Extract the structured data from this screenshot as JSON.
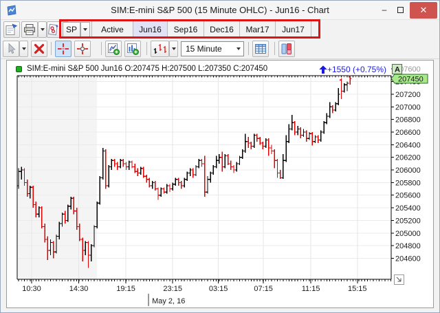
{
  "window": {
    "title": "SIM:E-mini S&P 500 (15 Minute OHLC) - Jun16 - Chart",
    "controls": {
      "minimize": "–",
      "close": "✕"
    }
  },
  "toolbar_main": {
    "icons": [
      "chart-settings-icon",
      "print-icon",
      "chartbook-icon"
    ]
  },
  "symbol_button": {
    "label": "SP"
  },
  "tabs": [
    {
      "label": "Active",
      "selected": false
    },
    {
      "label": "Jun16",
      "selected": true
    },
    {
      "label": "Sep16",
      "selected": false
    },
    {
      "label": "Dec16",
      "selected": false
    },
    {
      "label": "Mar17",
      "selected": false
    },
    {
      "label": "Jun17",
      "selected": false
    }
  ],
  "annotation": {
    "color": "#de1414"
  },
  "toolbar_chart": {
    "icons": [
      "pointer-icon",
      "delete-icon",
      "crosshair-icon",
      "circle-crosshair-icon",
      "open-chart-icon",
      "add-bars-icon",
      "ohlc-style-icon",
      "table-icon",
      "volume-profile-icon"
    ],
    "timeframe": {
      "value": "15 Minute"
    }
  },
  "chart": {
    "legend": "SIM:E-mini S&P 500 Jun16 O:207475 H:207500 L:207350 C:207450",
    "change": {
      "text": "+1550 (+0.75%)",
      "color": "#1b1bdf"
    },
    "last_price": "207450",
    "scale_button": "A",
    "date_label": "May 2, 16"
  },
  "chart_data": {
    "type": "ohlc-bar",
    "title": "SIM:E-mini S&P 500 Jun16, 15 Minute",
    "up_color": "#000000",
    "down_color": "#e00000",
    "grid": true,
    "y_axis": {
      "min": 204450,
      "max": 207600,
      "tick_step": 200,
      "labels": [
        "207600",
        "207400",
        "207200",
        "207000",
        "206800",
        "206600",
        "206400",
        "206200",
        "206000",
        "205800",
        "205600",
        "205400",
        "205200",
        "205000",
        "204800",
        "204600"
      ]
    },
    "x_axis": {
      "labels": [
        {
          "text": "10:30",
          "bar": 4.5
        },
        {
          "text": "14:30",
          "bar": 20.7
        },
        {
          "text": "19:15",
          "bar": 36.9
        },
        {
          "text": "23:15",
          "bar": 53
        },
        {
          "text": "03:15",
          "bar": 68.7
        },
        {
          "text": "07:15",
          "bar": 84.2
        },
        {
          "text": "11:15",
          "bar": 100.5
        },
        {
          "text": "15:15",
          "bar": 116.5
        }
      ],
      "date_marker": {
        "text": "May 2, 16",
        "bar": 44.7
      }
    },
    "session_shade": {
      "from_bar": -0.5,
      "to_bar": 27,
      "color": "#f4f4f4"
    },
    "bars": [
      [
        205750,
        206025,
        205700,
        205975
      ],
      [
        205975,
        206050,
        205850,
        206000
      ],
      [
        206000,
        206025,
        205750,
        205800
      ],
      [
        205800,
        205850,
        205575,
        205625
      ],
      [
        205625,
        205750,
        205550,
        205725
      ],
      [
        205725,
        205750,
        205400,
        205450
      ],
      [
        205450,
        205500,
        205250,
        205300
      ],
      [
        205300,
        205425,
        205250,
        205400
      ],
      [
        205400,
        205425,
        205075,
        205100
      ],
      [
        205100,
        205150,
        204850,
        204900
      ],
      [
        204900,
        204950,
        204575,
        204725
      ],
      [
        204725,
        204900,
        204650,
        204850
      ],
      [
        204850,
        204875,
        204600,
        204700
      ],
      [
        204700,
        204975,
        204675,
        204950
      ],
      [
        204950,
        205175,
        204900,
        205150
      ],
      [
        205150,
        205325,
        205100,
        205300
      ],
      [
        205300,
        205350,
        205150,
        205200
      ],
      [
        205200,
        205450,
        205175,
        205425
      ],
      [
        205425,
        205575,
        205375,
        205550
      ],
      [
        205550,
        205575,
        205300,
        205350
      ],
      [
        205350,
        205400,
        205050,
        205100
      ],
      [
        205100,
        205150,
        204875,
        204900
      ],
      [
        204900,
        204925,
        204550,
        204725
      ],
      [
        204725,
        204875,
        204650,
        204850
      ],
      [
        204850,
        204875,
        204450,
        204650
      ],
      [
        204650,
        204825,
        204550,
        204800
      ],
      [
        204800,
        205125,
        204775,
        205100
      ],
      [
        205100,
        205500,
        205075,
        205475
      ],
      [
        205475,
        205900,
        205450,
        205875
      ],
      [
        205875,
        206350,
        205850,
        206300
      ],
      [
        206300,
        206325,
        205700,
        205750
      ],
      [
        205750,
        206075,
        205725,
        206050
      ],
      [
        206050,
        206175,
        206000,
        206150
      ],
      [
        206150,
        206175,
        206050,
        206100
      ],
      [
        206100,
        206125,
        206000,
        206050
      ],
      [
        206050,
        206175,
        206025,
        206150
      ],
      [
        206150,
        206175,
        206050,
        206100
      ],
      [
        206100,
        206125,
        206000,
        206050
      ],
      [
        206050,
        206150,
        206000,
        206125
      ],
      [
        206125,
        206150,
        206025,
        206050
      ],
      [
        206050,
        206100,
        205950,
        205975
      ],
      [
        205975,
        206025,
        205900,
        205950
      ],
      [
        205950,
        206050,
        205925,
        206025
      ],
      [
        206025,
        206050,
        205875,
        205900
      ],
      [
        205900,
        205925,
        205800,
        205850
      ],
      [
        205850,
        205875,
        205725,
        205750
      ],
      [
        205750,
        205825,
        205700,
        205800
      ],
      [
        205800,
        205825,
        205675,
        205700
      ],
      [
        205700,
        205725,
        205525,
        205600
      ],
      [
        205600,
        205725,
        205575,
        205700
      ],
      [
        205700,
        205725,
        205625,
        205650
      ],
      [
        205650,
        205775,
        205625,
        205750
      ],
      [
        205750,
        205775,
        205650,
        205700
      ],
      [
        205700,
        205800,
        205675,
        205775
      ],
      [
        205775,
        205875,
        205750,
        205850
      ],
      [
        205850,
        205875,
        205750,
        205800
      ],
      [
        205800,
        205825,
        205700,
        205750
      ],
      [
        205750,
        205875,
        205725,
        205850
      ],
      [
        205850,
        205975,
        205825,
        205950
      ],
      [
        205950,
        206025,
        205900,
        206000
      ],
      [
        206000,
        206025,
        205875,
        205925
      ],
      [
        205925,
        206075,
        205900,
        206050
      ],
      [
        206050,
        206175,
        206025,
        206150
      ],
      [
        206150,
        206175,
        206050,
        206100
      ],
      [
        206100,
        206225,
        205575,
        205650
      ],
      [
        205650,
        205900,
        205625,
        205850
      ],
      [
        205850,
        205975,
        205800,
        205950
      ],
      [
        205950,
        206075,
        205925,
        206050
      ],
      [
        206050,
        206225,
        206025,
        206150
      ],
      [
        206150,
        206250,
        206100,
        206200
      ],
      [
        206200,
        206290,
        205975,
        206050
      ],
      [
        206050,
        206250,
        206025,
        206225
      ],
      [
        206225,
        206250,
        206075,
        206100
      ],
      [
        206100,
        206150,
        206000,
        206050
      ],
      [
        206050,
        206075,
        205950,
        206000
      ],
      [
        206000,
        206125,
        205975,
        206100
      ],
      [
        206100,
        206225,
        206075,
        206200
      ],
      [
        206200,
        206325,
        206175,
        206300
      ],
      [
        206300,
        206575,
        206275,
        206450
      ],
      [
        206450,
        206525,
        206350,
        206425
      ],
      [
        206425,
        206450,
        206325,
        206375
      ],
      [
        206375,
        206575,
        206350,
        206550
      ],
      [
        206550,
        206575,
        206450,
        206500
      ],
      [
        206500,
        206525,
        206400,
        206425
      ],
      [
        206425,
        206450,
        206325,
        206375
      ],
      [
        206375,
        206500,
        206350,
        206475
      ],
      [
        206475,
        206500,
        206225,
        206350
      ],
      [
        206350,
        206400,
        206250,
        206300
      ],
      [
        206300,
        206325,
        206025,
        206150
      ],
      [
        206150,
        206175,
        205875,
        205950
      ],
      [
        205950,
        206000,
        205860,
        205875
      ],
      [
        205875,
        206250,
        205860,
        206150
      ],
      [
        206150,
        206550,
        206125,
        206450
      ],
      [
        206450,
        206725,
        206425,
        206650
      ],
      [
        206650,
        206875,
        206625,
        206750
      ],
      [
        206750,
        206775,
        206550,
        206600
      ],
      [
        206600,
        206700,
        206550,
        206650
      ],
      [
        206650,
        206675,
        206500,
        206550
      ],
      [
        206550,
        206650,
        206525,
        206600
      ],
      [
        206600,
        206625,
        206450,
        206500
      ],
      [
        206500,
        206600,
        206475,
        206575
      ],
      [
        206575,
        206600,
        206390,
        206450
      ],
      [
        206450,
        206550,
        206425,
        206525
      ],
      [
        206525,
        206550,
        206425,
        206475
      ],
      [
        206475,
        206625,
        206450,
        206600
      ],
      [
        206600,
        206775,
        206575,
        206750
      ],
      [
        206750,
        206900,
        206725,
        206850
      ],
      [
        206850,
        207075,
        206825,
        207000
      ],
      [
        207000,
        207025,
        206900,
        206950
      ],
      [
        206950,
        207075,
        206925,
        207050
      ],
      [
        207050,
        207300,
        207025,
        207200
      ],
      [
        207425,
        207450,
        207125,
        207250
      ],
      [
        207250,
        207375,
        207225,
        207350
      ],
      [
        207350,
        207400,
        207250,
        207375
      ],
      [
        207475,
        207500,
        207350,
        207450
      ]
    ]
  }
}
